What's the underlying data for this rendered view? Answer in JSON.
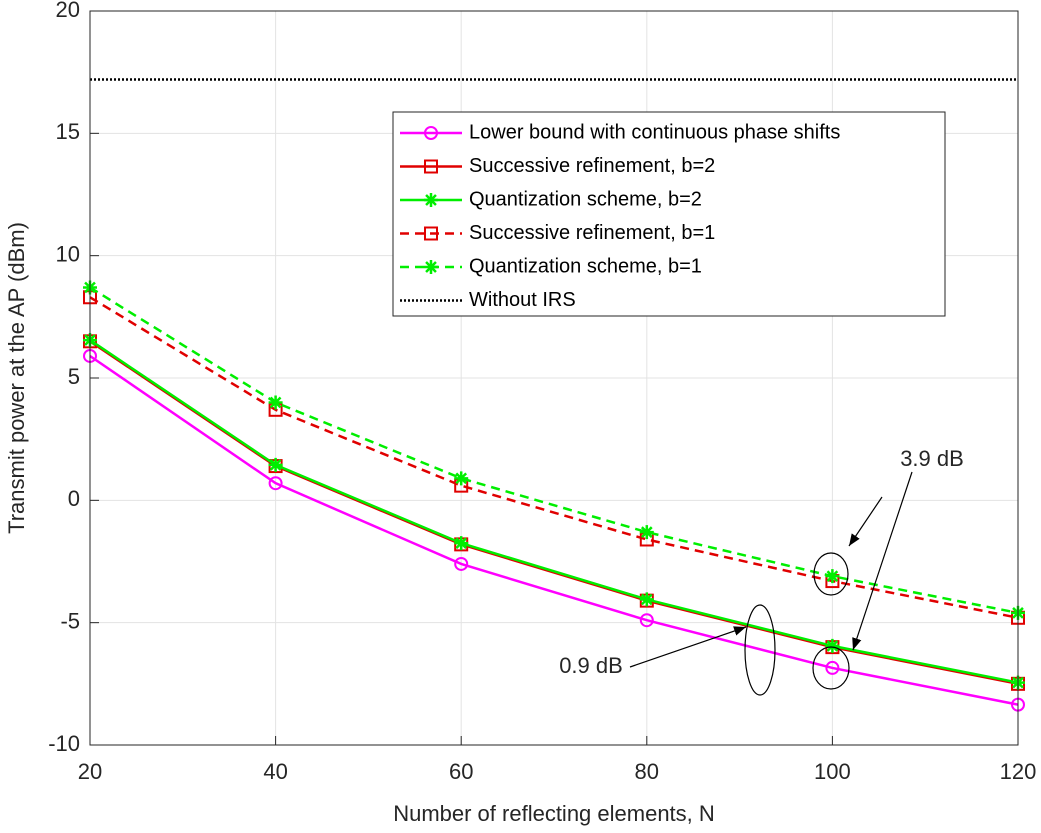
{
  "chart_data": {
    "type": "line",
    "xlabel": "Number of reflecting elements,  N",
    "ylabel": "Transmit power at the AP (dBm)",
    "x": [
      20,
      40,
      60,
      80,
      100,
      120
    ],
    "xlim": [
      20,
      120
    ],
    "xticks": [
      20,
      40,
      60,
      80,
      100,
      120
    ],
    "ylim": [
      -10,
      20
    ],
    "yticks": [
      -10,
      -5,
      0,
      5,
      10,
      15,
      20
    ],
    "grid": true,
    "legend": "upper right",
    "annotations": [
      "3.9 dB",
      "0.9 dB"
    ],
    "series": [
      {
        "name": "Lower bound with continuous phase shifts",
        "color": "#ff00ff",
        "linestyle": "solid",
        "marker": "o",
        "values": [
          5.9,
          0.7,
          -2.6,
          -4.9,
          -6.85,
          -8.35
        ]
      },
      {
        "name": "Successive refinement, b=2",
        "color": "#e00000",
        "linestyle": "solid",
        "marker": "s",
        "values": [
          6.5,
          1.4,
          -1.8,
          -4.1,
          -6.0,
          -7.5
        ]
      },
      {
        "name": "Quantization scheme, b=2",
        "color": "#00ee00",
        "linestyle": "solid",
        "marker": "*",
        "values": [
          6.55,
          1.45,
          -1.75,
          -4.05,
          -5.95,
          -7.45
        ]
      },
      {
        "name": "Successive refinement, b=1",
        "color": "#e00000",
        "linestyle": "dashed",
        "marker": "s",
        "values": [
          8.3,
          3.7,
          0.6,
          -1.6,
          -3.3,
          -4.8
        ]
      },
      {
        "name": "Quantization scheme, b=1",
        "color": "#00ee00",
        "linestyle": "dashed",
        "marker": "*",
        "values": [
          8.7,
          4.0,
          0.9,
          -1.3,
          -3.1,
          -4.6
        ]
      },
      {
        "name": "Without IRS",
        "color": "#000000",
        "linestyle": "dotted",
        "marker": "none",
        "values": [
          17.2,
          17.2,
          17.2,
          17.2,
          17.2,
          17.2
        ]
      }
    ]
  }
}
